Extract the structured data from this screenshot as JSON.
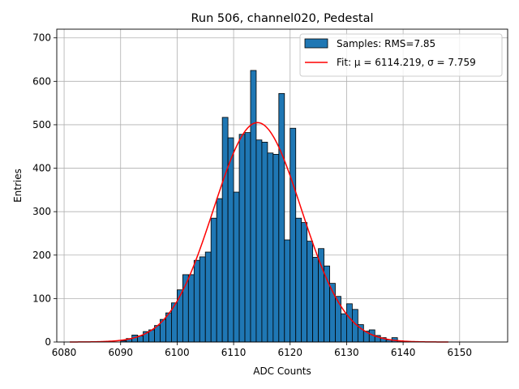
{
  "chart_data": {
    "type": "bar",
    "title": "Run 506, channel020, Pedestal",
    "xlabel": "ADC Counts",
    "ylabel": "Entries",
    "xlim": [
      6078.7,
      6158.5
    ],
    "ylim": [
      0,
      720
    ],
    "xticks": [
      6080,
      6090,
      6100,
      6110,
      6120,
      6130,
      6140,
      6150
    ],
    "yticks": [
      0,
      100,
      200,
      300,
      400,
      500,
      600,
      700
    ],
    "grid": true,
    "legend_position": "top-right",
    "bin_width": 1,
    "bin_start": 6090,
    "values": [
      3,
      8,
      16,
      14,
      24,
      28,
      38,
      52,
      67,
      90,
      120,
      155,
      155,
      188,
      196,
      207,
      285,
      330,
      517,
      470,
      345,
      478,
      482,
      625,
      465,
      460,
      435,
      432,
      572,
      235,
      492,
      285,
      275,
      232,
      195,
      215,
      175,
      135,
      105,
      65,
      88,
      75,
      40,
      25,
      28,
      15,
      10,
      5,
      10,
      3,
      2
    ],
    "series": [
      {
        "name": "Samples: RMS=7.85",
        "kind": "histogram",
        "color": "#1f77b4"
      },
      {
        "name": "Fit: μ = 6114.219, σ = 7.759",
        "kind": "gaussian-fit",
        "color": "#ff0000",
        "mu": 6114.219,
        "sigma": 7.759,
        "peak": 505,
        "x_range": [
          6081,
          6148
        ]
      }
    ]
  }
}
